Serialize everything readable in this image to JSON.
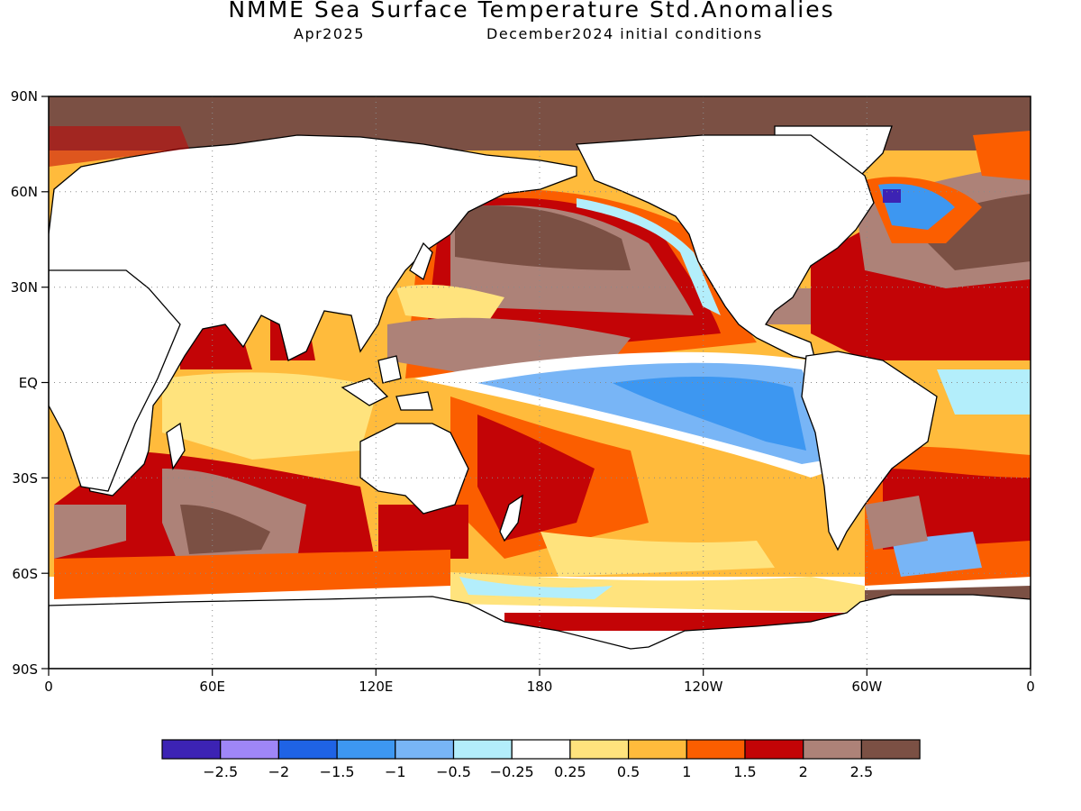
{
  "title": "NMME Sea Surface Temperature Std.Anomalies",
  "subtitle_left": "Apr2025",
  "subtitle_right": "December2024 initial conditions",
  "map": {
    "projection": "equirectangular",
    "lon_range": [
      0,
      360
    ],
    "lat_range": [
      -90,
      90
    ],
    "grid": true
  },
  "x_tick_labels": [
    "0",
    "60E",
    "120E",
    "180",
    "120W",
    "60W",
    "0"
  ],
  "y_tick_labels": [
    "90N",
    "60N",
    "30N",
    "EQ",
    "30S",
    "60S",
    "90S"
  ],
  "colorbar": {
    "colors": [
      "#3c23b4",
      "#9f86f7",
      "#1f63e5",
      "#3d97f1",
      "#78b5f6",
      "#b3eefb",
      "#ffffff",
      "#ffe37d",
      "#ffbb3c",
      "#fb5e00",
      "#c30406",
      "#ad8278",
      "#7b5044"
    ],
    "labels": [
      "−2.5",
      "−2",
      "−1.5",
      "−1",
      "−0.5",
      "−0.25",
      "0.25",
      "0.5",
      "1",
      "1.5",
      "2",
      "2.5"
    ]
  }
}
